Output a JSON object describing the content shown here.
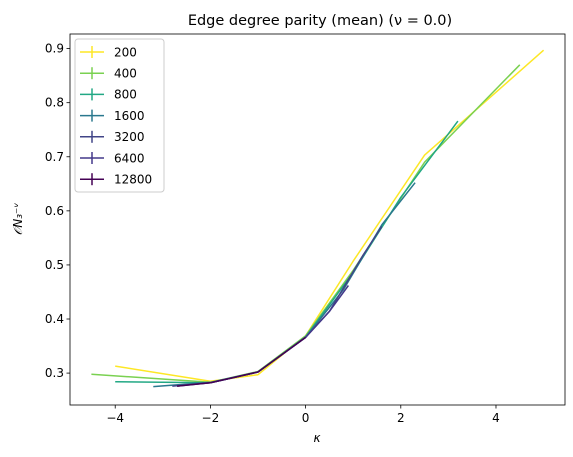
{
  "chart_data": {
    "type": "line",
    "title": "Edge degree parity (mean) (ν = 0.0)",
    "xlabel": "κ",
    "ylabel": "𝒪N₃⁻ᵛ",
    "xlim": [
      -4.95,
      5.45
    ],
    "ylim": [
      0.241,
      0.927
    ],
    "xticks": [
      -4,
      -2,
      0,
      2,
      4
    ],
    "yticks": [
      0.3,
      0.4,
      0.5,
      0.6,
      0.7,
      0.8,
      0.9
    ],
    "xtick_labels": [
      "−4",
      "−2",
      "0",
      "2",
      "4"
    ],
    "ytick_labels": [
      "0.3",
      "0.4",
      "0.5",
      "0.6",
      "0.7",
      "0.8",
      "0.9"
    ],
    "grid": false,
    "legend_position": "top-left",
    "series": [
      {
        "name": "200",
        "color": "#fde725",
        "x": [
          -4.0,
          -2.0,
          -1.0,
          0.0,
          1.0,
          2.5,
          5.0
        ],
        "y": [
          0.313,
          0.285,
          0.297,
          0.369,
          0.507,
          0.703,
          0.897
        ]
      },
      {
        "name": "400",
        "color": "#7ad151",
        "x": [
          -4.5,
          -2.0,
          -1.0,
          0.0,
          1.0,
          2.5,
          4.5
        ],
        "y": [
          0.298,
          0.283,
          0.303,
          0.369,
          0.49,
          0.69,
          0.87
        ]
      },
      {
        "name": "800",
        "color": "#22a884",
        "x": [
          -4.0,
          -2.0,
          -1.0,
          0.0,
          1.0,
          2.0,
          3.2
        ],
        "y": [
          0.284,
          0.282,
          0.302,
          0.367,
          0.486,
          0.625,
          0.766
        ]
      },
      {
        "name": "1600",
        "color": "#2a788e",
        "x": [
          -3.2,
          -2.0,
          -1.0,
          0.0,
          0.8,
          1.6,
          2.3
        ],
        "y": [
          0.275,
          0.283,
          0.302,
          0.366,
          0.455,
          0.574,
          0.652
        ]
      },
      {
        "name": "3200",
        "color": "#414487",
        "x": [
          -2.8,
          -2.0,
          -1.0,
          0.0,
          0.5,
          1.2,
          1.6
        ],
        "y": [
          0.276,
          0.282,
          0.302,
          0.366,
          0.414,
          0.517,
          0.571
        ]
      },
      {
        "name": "6400",
        "color": "#44398a",
        "x": [
          -2.7,
          -2.0,
          -1.0,
          0.0,
          0.5,
          0.9
        ],
        "y": [
          0.276,
          0.282,
          0.302,
          0.366,
          0.414,
          0.462
        ]
      },
      {
        "name": "12800",
        "color": "#440154",
        "x": [
          -2.7,
          -2.0,
          -1.0,
          0.0
        ],
        "y": [
          0.276,
          0.282,
          0.302,
          0.366
        ]
      }
    ]
  }
}
